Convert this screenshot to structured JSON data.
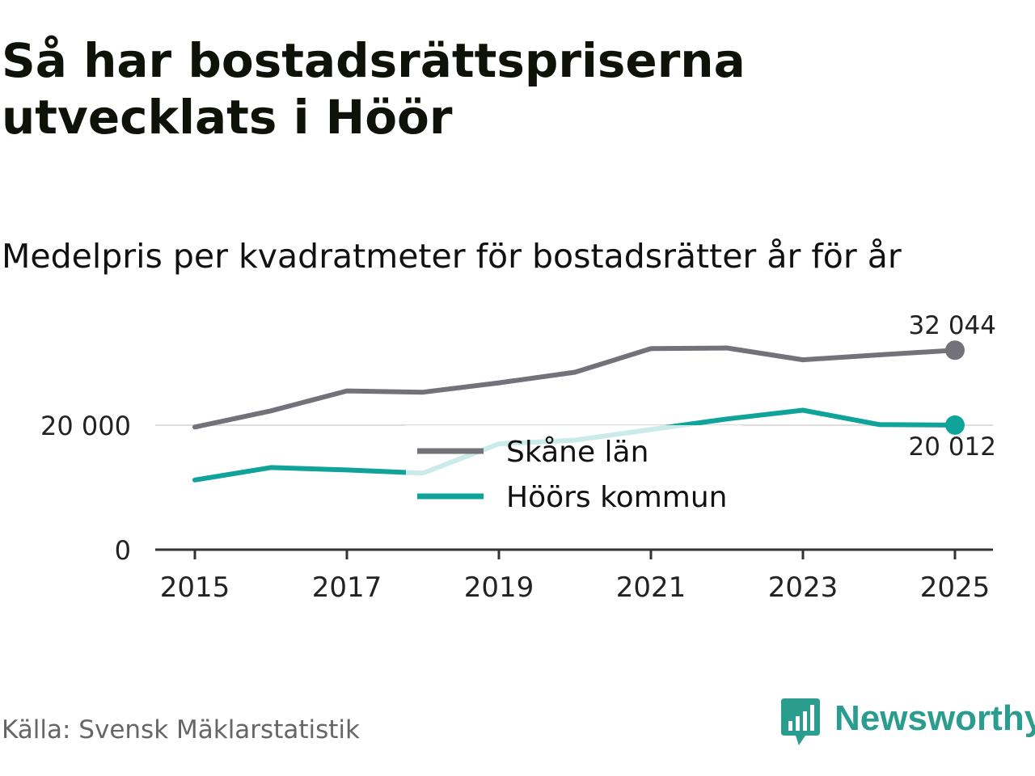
{
  "title": "Så har bostadsrättspriserna utvecklats i Höör",
  "subtitle": "Medelpris per kvadratmeter för bostadsrätter år för år",
  "source": "Källa: Svensk Mäklarstatistik",
  "brand": "Newsworthy",
  "colors": {
    "skane": "#73727a",
    "hoor": "#0fa39a",
    "grid": "#dddddd",
    "axis": "#333333",
    "brand": "#2a9d8f"
  },
  "chart_data": {
    "type": "line",
    "x": [
      2015,
      2016,
      2017,
      2018,
      2019,
      2020,
      2021,
      2022,
      2023,
      2024,
      2025
    ],
    "series": [
      {
        "name": "Skåne län",
        "values": [
          19700,
          22300,
          25500,
          25300,
          26800,
          28500,
          32300,
          32400,
          30500,
          31300,
          32044
        ]
      },
      {
        "name": "Höörs kommun",
        "values": [
          11200,
          13200,
          12800,
          12300,
          17000,
          17600,
          19300,
          21000,
          22400,
          20100,
          20012
        ]
      }
    ],
    "xticks": [
      2015,
      2017,
      2019,
      2021,
      2023,
      2025
    ],
    "xtick_labels": [
      "2015",
      "2017",
      "2019",
      "2021",
      "2023",
      "2025"
    ],
    "yticks": [
      0,
      20000
    ],
    "ytick_labels": [
      "0",
      "20 000"
    ],
    "ylim": [
      0,
      40000
    ],
    "end_labels": [
      "32 044",
      "20 012"
    ],
    "legend": [
      "Skåne län",
      "Höörs kommun"
    ],
    "legend_position": "center"
  }
}
